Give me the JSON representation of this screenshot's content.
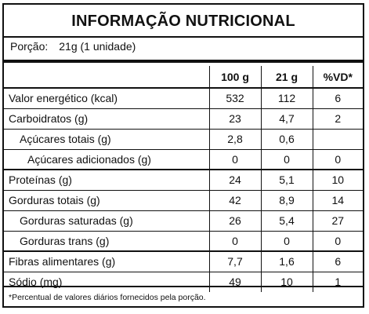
{
  "title": "INFORMAÇÃO NUTRICIONAL",
  "portion": {
    "label": "Porção:",
    "value": "21g (1 unidade)"
  },
  "columns": [
    "100 g",
    "21 g",
    "%VD*"
  ],
  "rows": [
    {
      "label": "Valor energético (kcal)",
      "v100": "532",
      "v21": "112",
      "vd": "6"
    },
    {
      "label": "Carboidratos (g)",
      "v100": "23",
      "v21": "4,7",
      "vd": "2"
    },
    {
      "label": "Açúcares totais (g)",
      "v100": "2,8",
      "v21": "0,6",
      "vd": ""
    },
    {
      "label": "Açúcares adicionados (g)",
      "v100": "0",
      "v21": "0",
      "vd": "0"
    },
    {
      "label": "Proteínas (g)",
      "v100": "24",
      "v21": "5,1",
      "vd": "10"
    },
    {
      "label": "Gorduras totais (g)",
      "v100": "42",
      "v21": "8,9",
      "vd": "14"
    },
    {
      "label": "Gorduras saturadas (g)",
      "v100": "26",
      "v21": "5,4",
      "vd": "27"
    },
    {
      "label": "Gorduras trans (g)",
      "v100": "0",
      "v21": "0",
      "vd": "0"
    },
    {
      "label": "Fibras alimentares (g)",
      "v100": "7,7",
      "v21": "1,6",
      "vd": "6"
    },
    {
      "label": "Sódio (mg)",
      "v100": "49",
      "v21": "10",
      "vd": "1"
    }
  ],
  "footnote": "*Percentual de valores diários fornecidos pela porção."
}
